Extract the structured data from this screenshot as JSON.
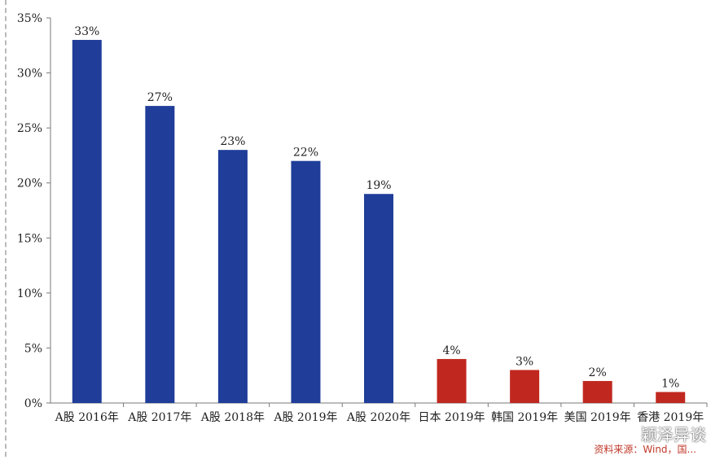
{
  "chart_data": {
    "type": "bar",
    "categories": [
      "A股 2016年",
      "A股 2017年",
      "A股 2018年",
      "A股 2019年",
      "A股 2020年",
      "日本 2019年",
      "韩国 2019年",
      "美国 2019年",
      "香港 2019年"
    ],
    "values": [
      33,
      27,
      23,
      22,
      19,
      4,
      3,
      2,
      1
    ],
    "value_labels": [
      "33%",
      "27%",
      "23%",
      "22%",
      "19%",
      "4%",
      "3%",
      "2%",
      "1%"
    ],
    "bar_colors": [
      "#1f3d99",
      "#1f3d99",
      "#1f3d99",
      "#1f3d99",
      "#1f3d99",
      "#c0281f",
      "#c0281f",
      "#c0281f",
      "#c0281f"
    ],
    "y_ticks": [
      0,
      5,
      10,
      15,
      20,
      25,
      30,
      35
    ],
    "y_tick_labels": [
      "0%",
      "5%",
      "10%",
      "15%",
      "20%",
      "25%",
      "30%",
      "35%"
    ],
    "ylim": [
      0,
      35
    ],
    "grid": false,
    "title": "",
    "xlabel": "",
    "ylabel": ""
  },
  "source_note": "资料来源：Wind，国...",
  "watermark": {
    "text": "颖泽异谈",
    "icon": "wechat-icon"
  }
}
